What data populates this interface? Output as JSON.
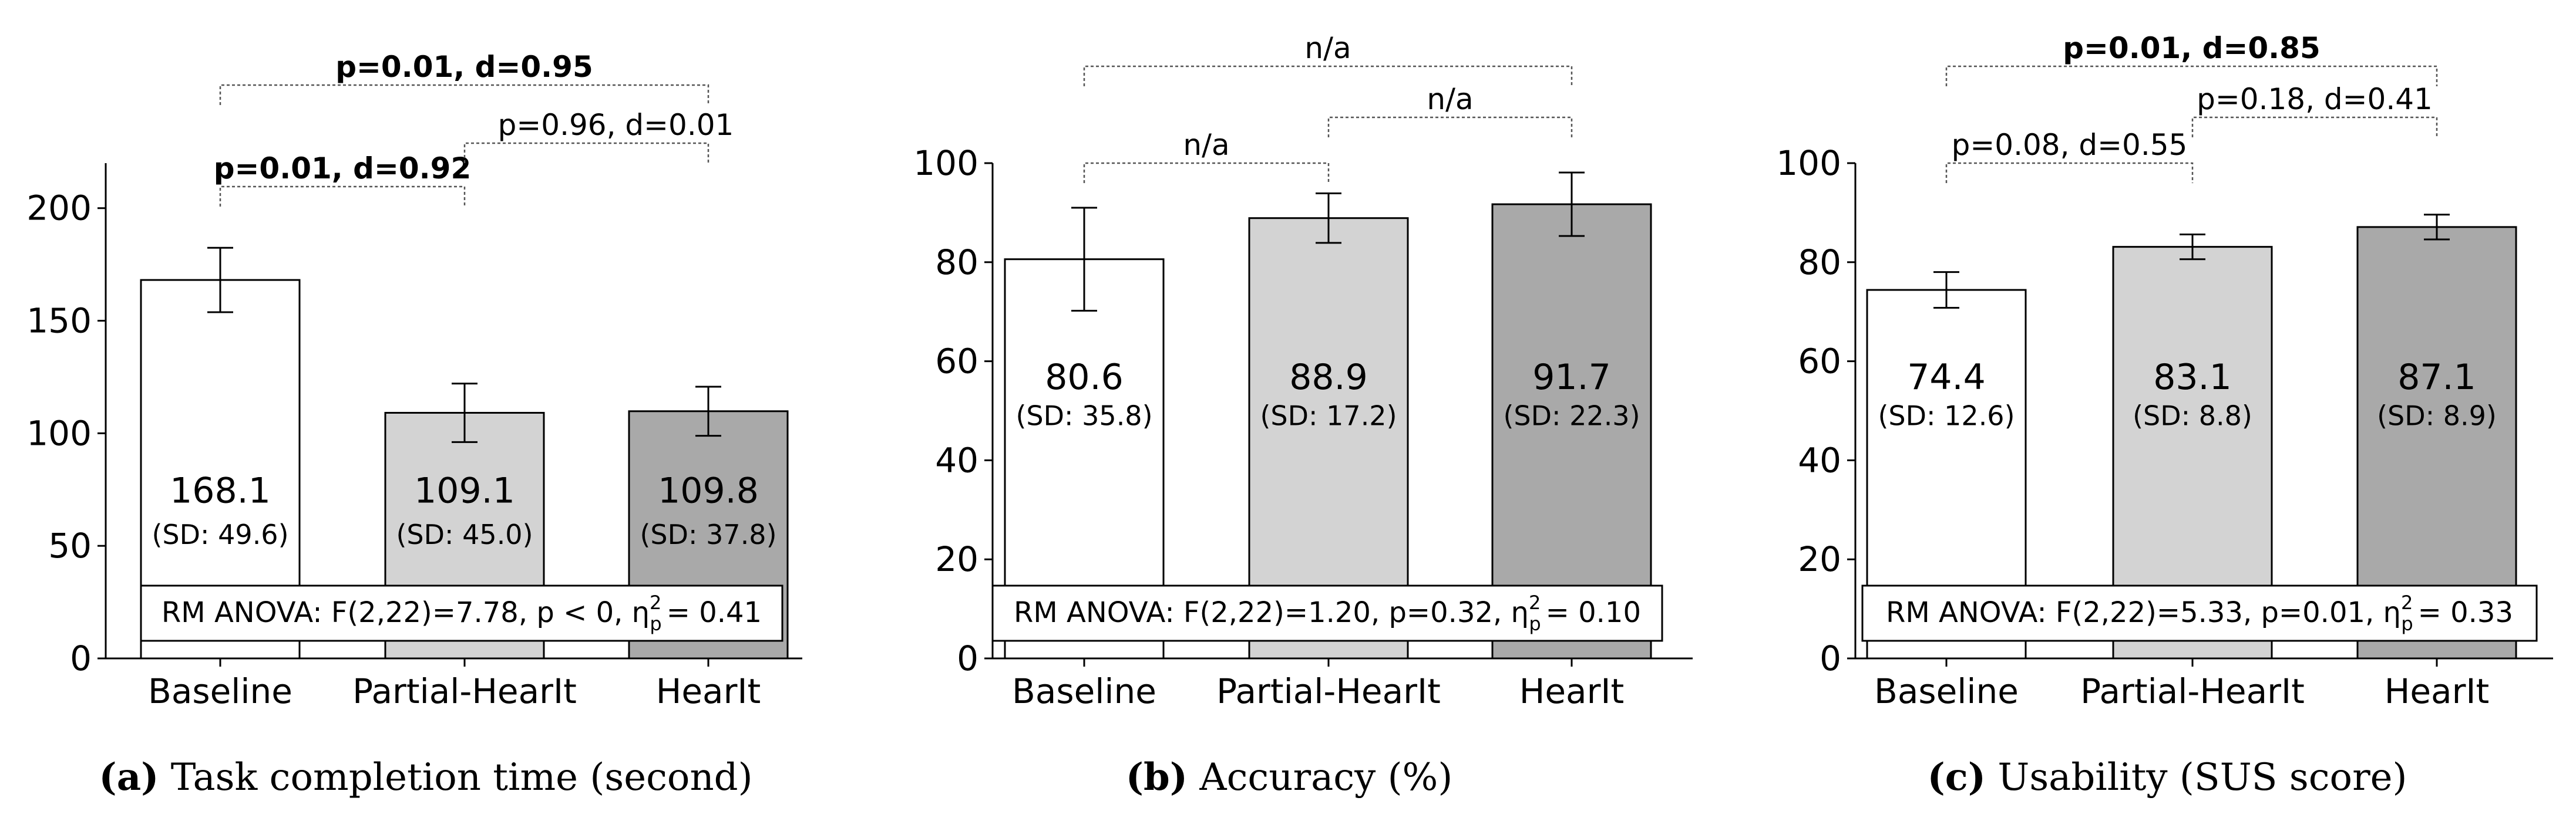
{
  "chart_data": [
    {
      "type": "bar",
      "panel": "a",
      "caption_label": "(a)",
      "caption_text": " Task completion time (second)",
      "categories": [
        "Baseline",
        "Partial-HearIt",
        "HearIt"
      ],
      "values": [
        168.1,
        109.1,
        109.8
      ],
      "errors": [
        14.3,
        13.0,
        10.9
      ],
      "value_labels": [
        "168.1",
        "109.1",
        "109.8"
      ],
      "sd_labels": [
        "(SD: 49.6)",
        "(SD: 45.0)",
        "(SD: 37.8)"
      ],
      "bar_colors": [
        "#ffffff",
        "#d3d3d3",
        "#a9a9a9"
      ],
      "ylim": [
        0,
        220
      ],
      "yticks": [
        0,
        50,
        100,
        150,
        200
      ],
      "value_label_y": 75,
      "sd_label_y": 55,
      "anova_text": "RM ANOVA: F(2,22)=7.78, p < 0, η",
      "anova_value": "= 0.41",
      "eta_sup": "2",
      "eta_sub": "p",
      "brackets": [
        {
          "from": 0,
          "to": 1,
          "level": 0,
          "label": "p=0.01, d=0.92",
          "bold": true
        },
        {
          "from": 1,
          "to": 2,
          "level": 1,
          "label": "p=0.96, d=0.01",
          "bold": false
        },
        {
          "from": 0,
          "to": 2,
          "level": 2,
          "label": "p=0.01, d=0.95",
          "bold": true
        }
      ]
    },
    {
      "type": "bar",
      "panel": "b",
      "caption_label": "(b)",
      "caption_text": " Accuracy (%)",
      "categories": [
        "Baseline",
        "Partial-HearIt",
        "HearIt"
      ],
      "values": [
        80.6,
        88.9,
        91.7
      ],
      "errors": [
        10.4,
        5.0,
        6.4
      ],
      "value_labels": [
        "80.6",
        "88.9",
        "91.7"
      ],
      "sd_labels": [
        "(SD: 35.8)",
        "(SD: 17.2)",
        "(SD: 22.3)"
      ],
      "bar_colors": [
        "#ffffff",
        "#d3d3d3",
        "#a9a9a9"
      ],
      "ylim": [
        0,
        100
      ],
      "yticks": [
        0,
        20,
        40,
        60,
        80,
        100
      ],
      "value_label_y": 57,
      "sd_label_y": 49,
      "anova_text": "RM ANOVA: F(2,22)=1.20, p=0.32, η",
      "anova_value": "= 0.10",
      "eta_sup": "2",
      "eta_sub": "p",
      "brackets": [
        {
          "from": 0,
          "to": 1,
          "level": 0,
          "label": "n/a",
          "bold": false
        },
        {
          "from": 1,
          "to": 2,
          "level": 1,
          "label": "n/a",
          "bold": false
        },
        {
          "from": 0,
          "to": 2,
          "level": 2,
          "label": "n/a",
          "bold": false
        }
      ]
    },
    {
      "type": "bar",
      "panel": "c",
      "caption_label": "(c)",
      "caption_text": " Usability (SUS score)",
      "categories": [
        "Baseline",
        "Partial-HearIt",
        "HearIt"
      ],
      "values": [
        74.4,
        83.1,
        87.1
      ],
      "errors": [
        3.6,
        2.5,
        2.5
      ],
      "value_labels": [
        "74.4",
        "83.1",
        "87.1"
      ],
      "sd_labels": [
        "(SD: 12.6)",
        "(SD: 8.8)",
        "(SD: 8.9)"
      ],
      "bar_colors": [
        "#ffffff",
        "#d3d3d3",
        "#a9a9a9"
      ],
      "ylim": [
        0,
        100
      ],
      "yticks": [
        0,
        20,
        40,
        60,
        80,
        100
      ],
      "value_label_y": 57,
      "sd_label_y": 49,
      "anova_text": "RM ANOVA: F(2,22)=5.33, p=0.01, η",
      "anova_value": "= 0.33",
      "eta_sup": "2",
      "eta_sub": "p",
      "brackets": [
        {
          "from": 0,
          "to": 1,
          "level": 0,
          "label": "p=0.08, d=0.55",
          "bold": false
        },
        {
          "from": 1,
          "to": 2,
          "level": 1,
          "label": "p=0.18, d=0.41",
          "bold": false
        },
        {
          "from": 0,
          "to": 2,
          "level": 2,
          "label": "p=0.01, d=0.85",
          "bold": true
        }
      ]
    }
  ]
}
